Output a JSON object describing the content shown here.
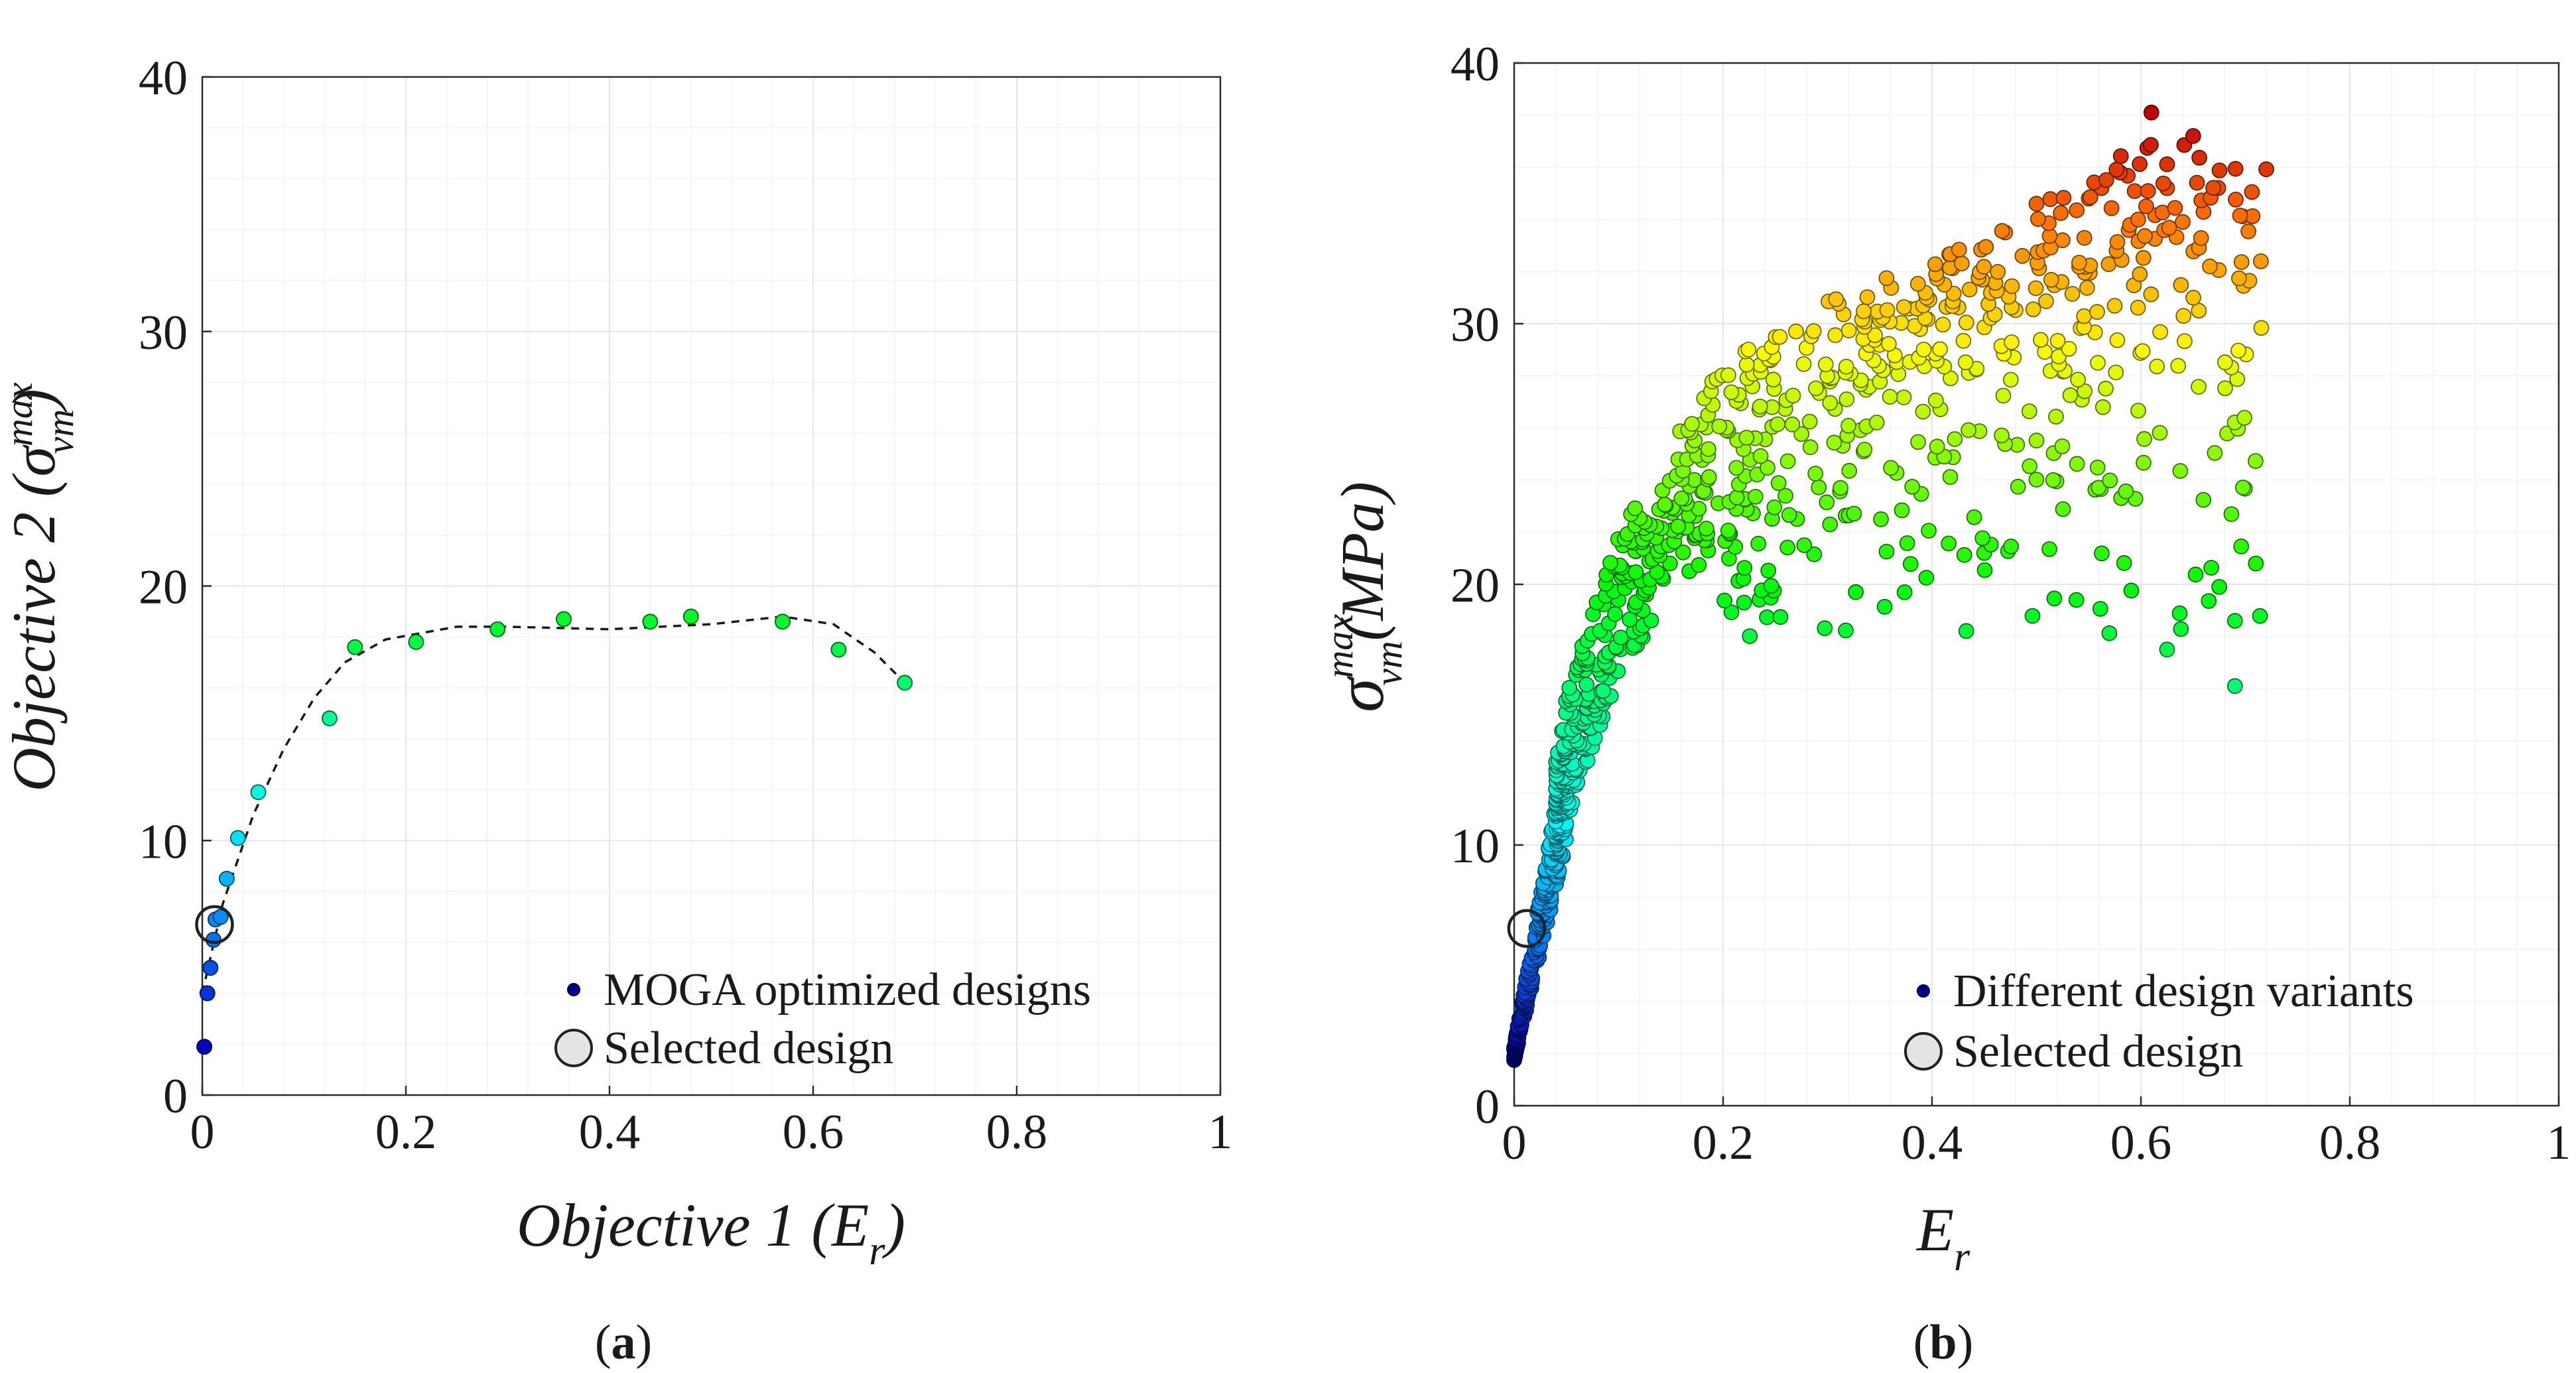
{
  "chart_data": [
    {
      "id": "a",
      "type": "scatter",
      "caption": "a",
      "xlabel": "Objective 1 (E",
      "xlabel_sub": "r",
      "xlabel_close": ")",
      "ylabel": "Objective 2 (σ",
      "ylabel_sup": "max",
      "ylabel_sub": "vm",
      "ylabel_close": ")",
      "xlim": [
        0,
        1
      ],
      "ylim": [
        0,
        40
      ],
      "xticks": [
        "0",
        "0.2",
        "0.4",
        "0.6",
        "0.8",
        "1"
      ],
      "yticks": [
        "0",
        "10",
        "20",
        "30",
        "40"
      ],
      "grid": true,
      "legend": {
        "placement": "bottom-right",
        "entries": [
          "MOGA optimized designs",
          "Selected design"
        ]
      },
      "series": [
        {
          "name": "MOGA optimized designs",
          "color_by": "y",
          "points": [
            [
              0.002,
              1.9
            ],
            [
              0.005,
              4.0
            ],
            [
              0.008,
              5.0
            ],
            [
              0.011,
              6.1
            ],
            [
              0.013,
              6.9
            ],
            [
              0.018,
              7.0
            ],
            [
              0.024,
              8.5
            ],
            [
              0.035,
              10.1
            ],
            [
              0.055,
              11.9
            ],
            [
              0.125,
              14.8
            ],
            [
              0.15,
              17.6
            ],
            [
              0.21,
              17.8
            ],
            [
              0.29,
              18.3
            ],
            [
              0.355,
              18.7
            ],
            [
              0.44,
              18.6
            ],
            [
              0.48,
              18.8
            ],
            [
              0.57,
              18.6
            ],
            [
              0.625,
              17.5
            ],
            [
              0.69,
              16.2
            ]
          ]
        },
        {
          "name": "Pareto trend",
          "style": "dashed",
          "points": [
            [
              0.0,
              4.0
            ],
            [
              0.02,
              7.5
            ],
            [
              0.05,
              11.0
            ],
            [
              0.08,
              13.6
            ],
            [
              0.11,
              15.6
            ],
            [
              0.14,
              17.0
            ],
            [
              0.18,
              17.9
            ],
            [
              0.25,
              18.4
            ],
            [
              0.3,
              18.4
            ],
            [
              0.4,
              18.3
            ],
            [
              0.5,
              18.5
            ],
            [
              0.57,
              18.8
            ],
            [
              0.62,
              18.5
            ],
            [
              0.66,
              17.4
            ],
            [
              0.69,
              16.2
            ]
          ]
        },
        {
          "name": "Selected design",
          "points": [
            [
              0.012,
              6.7
            ]
          ]
        }
      ]
    },
    {
      "id": "b",
      "type": "scatter",
      "caption": "b",
      "xlabel": "E",
      "xlabel_sub": "r",
      "ylabel": "σ",
      "ylabel_sup": "max",
      "ylabel_sub": "vm",
      "ylabel_unit": "(MPa)",
      "xlim": [
        0,
        1
      ],
      "ylim": [
        0,
        40
      ],
      "xticks": [
        "0",
        "0.2",
        "0.4",
        "0.6",
        "0.8",
        "1"
      ],
      "yticks": [
        "0",
        "10",
        "20",
        "30",
        "40"
      ],
      "grid": true,
      "legend": {
        "placement": "bottom-right",
        "entries": [
          "Different design variants",
          "Selected design"
        ]
      },
      "series": [
        {
          "name": "Different design variants",
          "color_by": "y",
          "approx_count": 1000,
          "regions": {
            "lower_envelope": [
              [
                0.0,
                1.5
              ],
              [
                0.05,
                8.0
              ],
              [
                0.1,
                13.5
              ],
              [
                0.15,
                16.5
              ],
              [
                0.2,
                17.8
              ],
              [
                0.4,
                18.0
              ],
              [
                0.6,
                17.5
              ],
              [
                0.7,
                16.0
              ]
            ],
            "upper_envelope": [
              [
                0.0,
                2.5
              ],
              [
                0.05,
                16.0
              ],
              [
                0.1,
                22.0
              ],
              [
                0.15,
                25.5
              ],
              [
                0.2,
                28.5
              ],
              [
                0.3,
                31.0
              ],
              [
                0.4,
                32.5
              ],
              [
                0.5,
                34.5
              ],
              [
                0.6,
                37.5
              ],
              [
                0.7,
                36.0
              ]
            ]
          },
          "notable_points": [
            [
              0.61,
              38.1
            ],
            [
              0.65,
              37.2
            ],
            [
              0.58,
              35.8
            ],
            [
              0.625,
              35.2
            ],
            [
              0.605,
              34.5
            ],
            [
              0.64,
              33.9
            ],
            [
              0.55,
              34.8
            ],
            [
              0.5,
              34.6
            ],
            [
              0.47,
              33.5
            ],
            [
              0.69,
              18.6
            ],
            [
              0.69,
              16.1
            ],
            [
              0.625,
              17.5
            ],
            [
              0.71,
              20.8
            ],
            [
              0.675,
              19.9
            ]
          ]
        },
        {
          "name": "Selected design",
          "points": [
            [
              0.012,
              6.8
            ]
          ]
        }
      ]
    }
  ]
}
